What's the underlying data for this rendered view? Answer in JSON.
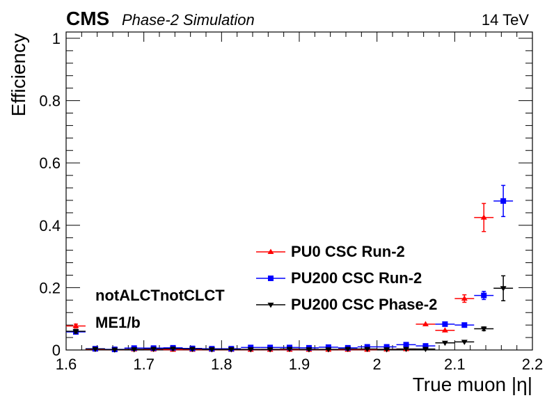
{
  "header": {
    "experiment": "CMS",
    "subtitle": "Phase-2 Simulation",
    "energy": "14 TeV"
  },
  "annotations": [
    "notALCTnotCLCT",
    "ME1/b"
  ],
  "chart_data": {
    "type": "scatter",
    "xlabel": "True muon |η|",
    "ylabel": "Efficiency",
    "xlim": [
      1.6,
      2.2
    ],
    "ylim": [
      0,
      1.02
    ],
    "x_ticks": [
      "1.6",
      "1.7",
      "1.8",
      "1.9",
      "2",
      "2.1",
      "2.2"
    ],
    "x_tick_values": [
      1.6,
      1.7,
      1.8,
      1.9,
      2.0,
      2.1,
      2.2
    ],
    "y_ticks": [
      "0",
      "0.2",
      "0.4",
      "0.6",
      "0.8",
      "1"
    ],
    "y_tick_values": [
      0,
      0.2,
      0.4,
      0.6,
      0.8,
      1.0
    ],
    "grid": false,
    "legend_position": "bottom-center",
    "series": [
      {
        "name": "PU0 CSC Run-2",
        "color": "#ff0000",
        "marker": "triangle-up",
        "points": [
          {
            "x": 1.6125,
            "y": 0.077,
            "xerr": 0.0125,
            "yerr": 0.006
          },
          {
            "x": 1.6375,
            "y": 0.002,
            "xerr": 0.0125,
            "yerr": 0.002
          },
          {
            "x": 1.6625,
            "y": 0.001,
            "xerr": 0.0125,
            "yerr": 0.001
          },
          {
            "x": 1.6875,
            "y": 0.002,
            "xerr": 0.0125,
            "yerr": 0.002
          },
          {
            "x": 1.7125,
            "y": 0.002,
            "xerr": 0.0125,
            "yerr": 0.002
          },
          {
            "x": 1.7375,
            "y": 0.001,
            "xerr": 0.0125,
            "yerr": 0.001
          },
          {
            "x": 1.7625,
            "y": 0.001,
            "xerr": 0.0125,
            "yerr": 0.001
          },
          {
            "x": 1.7875,
            "y": 0.001,
            "xerr": 0.0125,
            "yerr": 0.001
          },
          {
            "x": 1.8125,
            "y": 0.001,
            "xerr": 0.0125,
            "yerr": 0.001
          },
          {
            "x": 1.8375,
            "y": 0.001,
            "xerr": 0.0125,
            "yerr": 0.001
          },
          {
            "x": 1.8625,
            "y": 0.001,
            "xerr": 0.0125,
            "yerr": 0.001
          },
          {
            "x": 1.8875,
            "y": 0.001,
            "xerr": 0.0125,
            "yerr": 0.001
          },
          {
            "x": 1.9125,
            "y": 0.001,
            "xerr": 0.0125,
            "yerr": 0.001
          },
          {
            "x": 1.9375,
            "y": 0.001,
            "xerr": 0.0125,
            "yerr": 0.001
          },
          {
            "x": 1.9625,
            "y": 0.001,
            "xerr": 0.0125,
            "yerr": 0.001
          },
          {
            "x": 1.9875,
            "y": 0.001,
            "xerr": 0.0125,
            "yerr": 0.001
          },
          {
            "x": 2.0125,
            "y": 0.002,
            "xerr": 0.0125,
            "yerr": 0.002
          },
          {
            "x": 2.0375,
            "y": 0.003,
            "xerr": 0.0125,
            "yerr": 0.002
          },
          {
            "x": 2.0625,
            "y": 0.083,
            "xerr": 0.0125,
            "yerr": 0.004
          },
          {
            "x": 2.0875,
            "y": 0.063,
            "xerr": 0.0125,
            "yerr": 0.004
          },
          {
            "x": 2.1125,
            "y": 0.165,
            "xerr": 0.0125,
            "yerr": 0.012
          },
          {
            "x": 2.1375,
            "y": 0.425,
            "xerr": 0.0125,
            "yerr": 0.045
          }
        ]
      },
      {
        "name": "PU200 CSC Run-2",
        "color": "#0000ff",
        "marker": "square",
        "points": [
          {
            "x": 1.6125,
            "y": 0.058,
            "xerr": 0.0125,
            "yerr": 0.006
          },
          {
            "x": 1.6375,
            "y": 0.004,
            "xerr": 0.0125,
            "yerr": 0.002
          },
          {
            "x": 1.6625,
            "y": 0.002,
            "xerr": 0.0125,
            "yerr": 0.002
          },
          {
            "x": 1.6875,
            "y": 0.006,
            "xerr": 0.0125,
            "yerr": 0.002
          },
          {
            "x": 1.7125,
            "y": 0.006,
            "xerr": 0.0125,
            "yerr": 0.002
          },
          {
            "x": 1.7375,
            "y": 0.007,
            "xerr": 0.0125,
            "yerr": 0.002
          },
          {
            "x": 1.7625,
            "y": 0.005,
            "xerr": 0.0125,
            "yerr": 0.002
          },
          {
            "x": 1.7875,
            "y": 0.004,
            "xerr": 0.0125,
            "yerr": 0.002
          },
          {
            "x": 1.8125,
            "y": 0.004,
            "xerr": 0.0125,
            "yerr": 0.002
          },
          {
            "x": 1.8375,
            "y": 0.008,
            "xerr": 0.0125,
            "yerr": 0.002
          },
          {
            "x": 1.8625,
            "y": 0.008,
            "xerr": 0.0125,
            "yerr": 0.002
          },
          {
            "x": 1.8875,
            "y": 0.008,
            "xerr": 0.0125,
            "yerr": 0.002
          },
          {
            "x": 1.9125,
            "y": 0.007,
            "xerr": 0.0125,
            "yerr": 0.002
          },
          {
            "x": 1.9375,
            "y": 0.009,
            "xerr": 0.0125,
            "yerr": 0.002
          },
          {
            "x": 1.9625,
            "y": 0.007,
            "xerr": 0.0125,
            "yerr": 0.002
          },
          {
            "x": 1.9875,
            "y": 0.01,
            "xerr": 0.0125,
            "yerr": 0.002
          },
          {
            "x": 2.0125,
            "y": 0.01,
            "xerr": 0.0125,
            "yerr": 0.002
          },
          {
            "x": 2.0375,
            "y": 0.017,
            "xerr": 0.0125,
            "yerr": 0.003
          },
          {
            "x": 2.0625,
            "y": 0.013,
            "xerr": 0.0125,
            "yerr": 0.003
          },
          {
            "x": 2.0875,
            "y": 0.083,
            "xerr": 0.0125,
            "yerr": 0.005
          },
          {
            "x": 2.1125,
            "y": 0.08,
            "xerr": 0.0125,
            "yerr": 0.006
          },
          {
            "x": 2.1375,
            "y": 0.175,
            "xerr": 0.0125,
            "yerr": 0.013
          },
          {
            "x": 2.1625,
            "y": 0.478,
            "xerr": 0.0125,
            "yerr": 0.05
          }
        ]
      },
      {
        "name": "PU200 CSC Phase-2",
        "color": "#000000",
        "marker": "triangle-down",
        "points": [
          {
            "x": 1.6125,
            "y": 0.06,
            "xerr": 0.0125,
            "yerr": 0.006
          },
          {
            "x": 1.6375,
            "y": 0.003,
            "xerr": 0.0125,
            "yerr": 0.002
          },
          {
            "x": 1.6625,
            "y": 0.001,
            "xerr": 0.0125,
            "yerr": 0.001
          },
          {
            "x": 1.6875,
            "y": 0.002,
            "xerr": 0.0125,
            "yerr": 0.002
          },
          {
            "x": 1.7125,
            "y": 0.003,
            "xerr": 0.0125,
            "yerr": 0.002
          },
          {
            "x": 1.7375,
            "y": 0.004,
            "xerr": 0.0125,
            "yerr": 0.002
          },
          {
            "x": 1.7625,
            "y": 0.003,
            "xerr": 0.0125,
            "yerr": 0.002
          },
          {
            "x": 1.7875,
            "y": 0.002,
            "xerr": 0.0125,
            "yerr": 0.002
          },
          {
            "x": 1.8125,
            "y": 0.002,
            "xerr": 0.0125,
            "yerr": 0.002
          },
          {
            "x": 1.8375,
            "y": 0.002,
            "xerr": 0.0125,
            "yerr": 0.002
          },
          {
            "x": 1.8625,
            "y": 0.002,
            "xerr": 0.0125,
            "yerr": 0.002
          },
          {
            "x": 1.8875,
            "y": 0.003,
            "xerr": 0.0125,
            "yerr": 0.002
          },
          {
            "x": 1.9125,
            "y": 0.002,
            "xerr": 0.0125,
            "yerr": 0.002
          },
          {
            "x": 1.9375,
            "y": 0.002,
            "xerr": 0.0125,
            "yerr": 0.002
          },
          {
            "x": 1.9625,
            "y": 0.003,
            "xerr": 0.0125,
            "yerr": 0.002
          },
          {
            "x": 1.9875,
            "y": 0.003,
            "xerr": 0.0125,
            "yerr": 0.002
          },
          {
            "x": 2.0125,
            "y": 0.002,
            "xerr": 0.0125,
            "yerr": 0.002
          },
          {
            "x": 2.0375,
            "y": 0.003,
            "xerr": 0.0125,
            "yerr": 0.002
          },
          {
            "x": 2.0625,
            "y": 0.003,
            "xerr": 0.0125,
            "yerr": 0.002
          },
          {
            "x": 2.0875,
            "y": 0.023,
            "xerr": 0.0125,
            "yerr": 0.003
          },
          {
            "x": 2.1125,
            "y": 0.026,
            "xerr": 0.0125,
            "yerr": 0.003
          },
          {
            "x": 2.1375,
            "y": 0.068,
            "xerr": 0.0125,
            "yerr": 0.006
          },
          {
            "x": 2.1625,
            "y": 0.198,
            "xerr": 0.0125,
            "yerr": 0.04
          }
        ]
      }
    ]
  }
}
